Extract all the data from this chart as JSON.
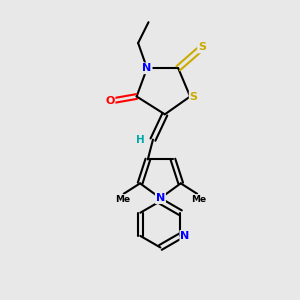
{
  "background_color": "#e8e8e8",
  "bond_color": "#000000",
  "atom_colors": {
    "N": "#0000ff",
    "O": "#ff0000",
    "S": "#ccaa00",
    "H": "#00aaaa",
    "C": "#000000"
  },
  "figsize": [
    3.0,
    3.0
  ],
  "dpi": 100
}
